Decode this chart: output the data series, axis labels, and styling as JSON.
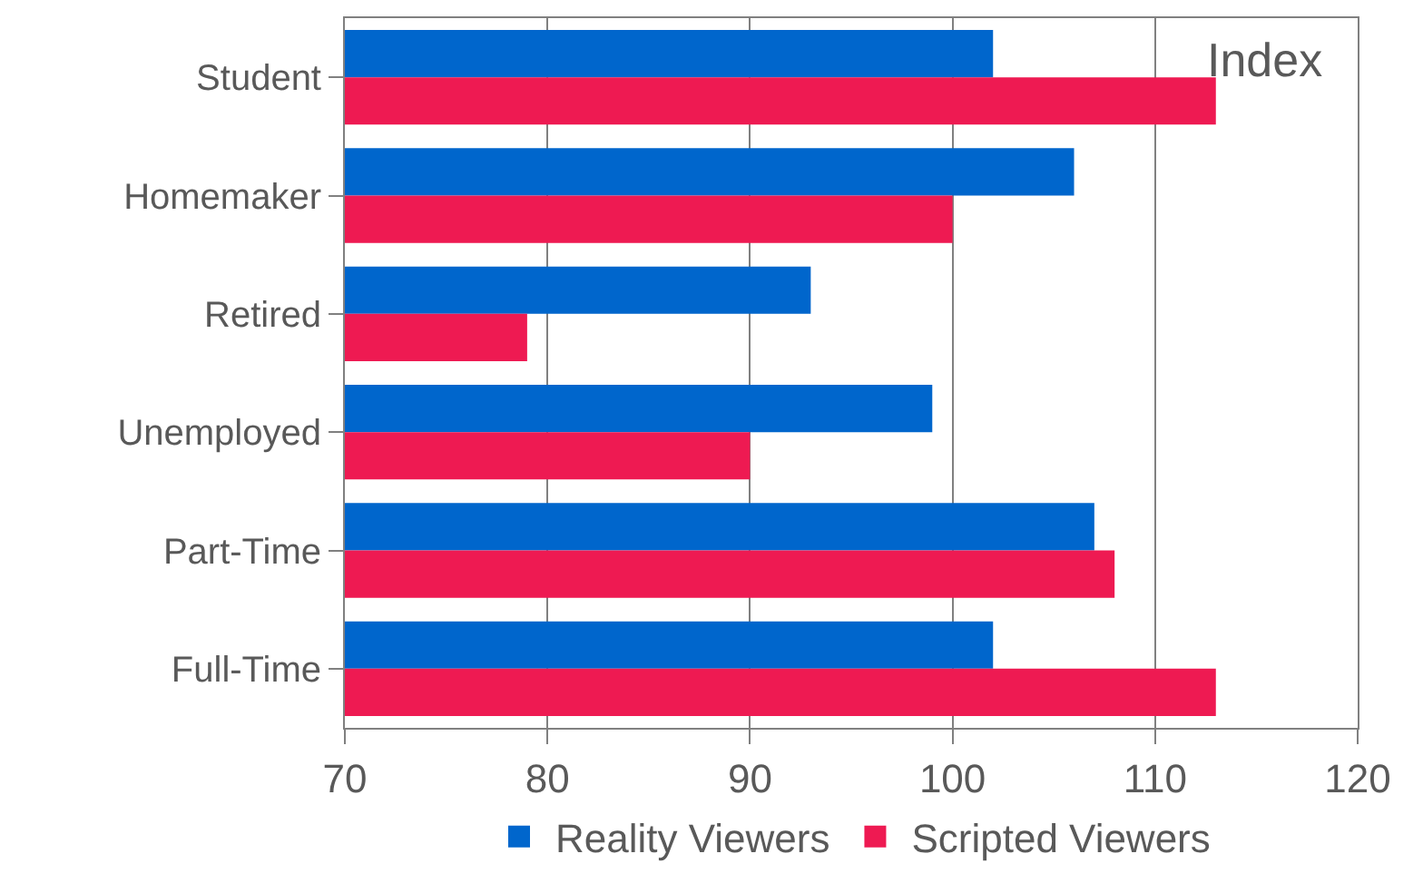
{
  "chart_data": {
    "type": "bar",
    "orientation": "horizontal",
    "categories": [
      "Student",
      "Homemaker",
      "Retired",
      "Unemployed",
      "Part-Time",
      "Full-Time"
    ],
    "series": [
      {
        "name": "Reality Viewers",
        "color": "#0066cc",
        "values": [
          102,
          106,
          93,
          99,
          107,
          102
        ]
      },
      {
        "name": "Scripted Viewers",
        "color": "#ee1a52",
        "values": [
          113,
          100,
          79,
          90,
          108,
          113
        ]
      }
    ],
    "xlim": [
      70,
      120
    ],
    "xticks": [
      70,
      80,
      90,
      100,
      110,
      120
    ],
    "grid": "x",
    "legend": "bottom",
    "annotations": [
      "Index"
    ]
  }
}
